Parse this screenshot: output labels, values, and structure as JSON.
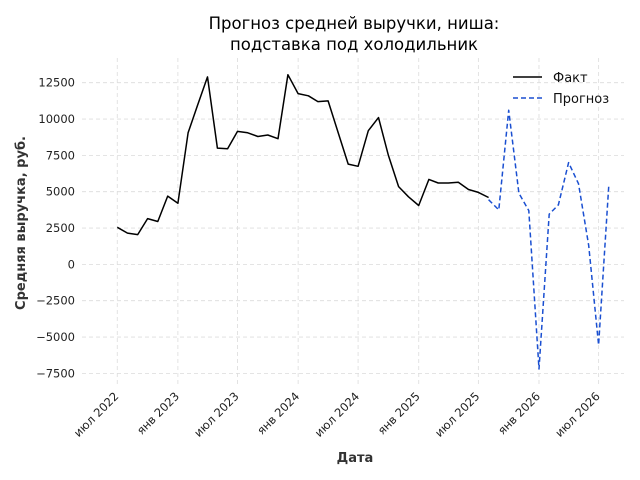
{
  "chart_data": {
    "type": "line",
    "title_lines": [
      "Прогноз средней выручки, ниша:",
      "подставка под холодильник"
    ],
    "xlabel": "Дата",
    "ylabel": "Средняя выручка, руб.",
    "x_range": [
      "2022-03-16",
      "2026-09-16"
    ],
    "ylim": [
      -8300,
      14200
    ],
    "y_ticks": [
      -7500,
      -5000,
      -2500,
      0,
      2500,
      5000,
      7500,
      10000,
      12500
    ],
    "y_tick_labels": [
      "−7500",
      "−5000",
      "−2500",
      "0",
      "2500",
      "5000",
      "7500",
      "10000",
      "12500"
    ],
    "x_ticks": [
      {
        "date": "2022-07-01",
        "label": "июл 2022"
      },
      {
        "date": "2023-01-01",
        "label": "янв 2023"
      },
      {
        "date": "2023-07-01",
        "label": "июл 2023"
      },
      {
        "date": "2024-01-01",
        "label": "янв 2024"
      },
      {
        "date": "2024-07-01",
        "label": "июл 2024"
      },
      {
        "date": "2025-01-01",
        "label": "янв 2025"
      },
      {
        "date": "2025-07-01",
        "label": "июл 2025"
      },
      {
        "date": "2026-01-01",
        "label": "янв 2026"
      },
      {
        "date": "2026-07-01",
        "label": "июл 2026"
      }
    ],
    "grid": true,
    "legend_position": "top-right",
    "series": [
      {
        "name": "Факт",
        "style": "solid",
        "color": "#000000",
        "x": [
          "2022-07-01",
          "2022-08-01",
          "2022-09-01",
          "2022-10-01",
          "2022-11-01",
          "2022-12-01",
          "2023-01-01",
          "2023-02-01",
          "2023-03-01",
          "2023-04-01",
          "2023-05-01",
          "2023-06-01",
          "2023-07-01",
          "2023-08-01",
          "2023-09-01",
          "2023-10-01",
          "2023-11-01",
          "2023-12-01",
          "2024-01-01",
          "2024-02-01",
          "2024-03-01",
          "2024-04-01",
          "2024-05-01",
          "2024-06-01",
          "2024-07-01",
          "2024-08-01",
          "2024-09-01",
          "2024-10-01",
          "2024-11-01",
          "2024-12-01",
          "2025-01-01",
          "2025-02-01",
          "2025-03-01",
          "2025-04-01",
          "2025-05-01",
          "2025-06-01",
          "2025-07-01",
          "2025-08-01"
        ],
        "y": [
          2550,
          2150,
          2050,
          3150,
          2950,
          4700,
          4200,
          9050,
          10900,
          12900,
          8000,
          7950,
          9150,
          9050,
          8800,
          8900,
          8650,
          13050,
          11750,
          11600,
          11200,
          11250,
          9100,
          6900,
          6750,
          9200,
          10100,
          7500,
          5350,
          4650,
          4050,
          5850,
          5600,
          5600,
          5650,
          5150,
          4950,
          4600
        ]
      },
      {
        "name": "Прогноз",
        "style": "dashed",
        "color": "#1a4fd1",
        "x": [
          "2025-08-01",
          "2025-09-01",
          "2025-10-01",
          "2025-11-01",
          "2025-12-01",
          "2026-01-01",
          "2026-02-01",
          "2026-03-01",
          "2026-04-01",
          "2026-05-01",
          "2026-06-01",
          "2026-07-01",
          "2026-08-01"
        ],
        "y": [
          4450,
          3750,
          10600,
          4900,
          3700,
          -7200,
          3450,
          4100,
          7000,
          5550,
          1300,
          -5550,
          5450
        ]
      }
    ]
  }
}
